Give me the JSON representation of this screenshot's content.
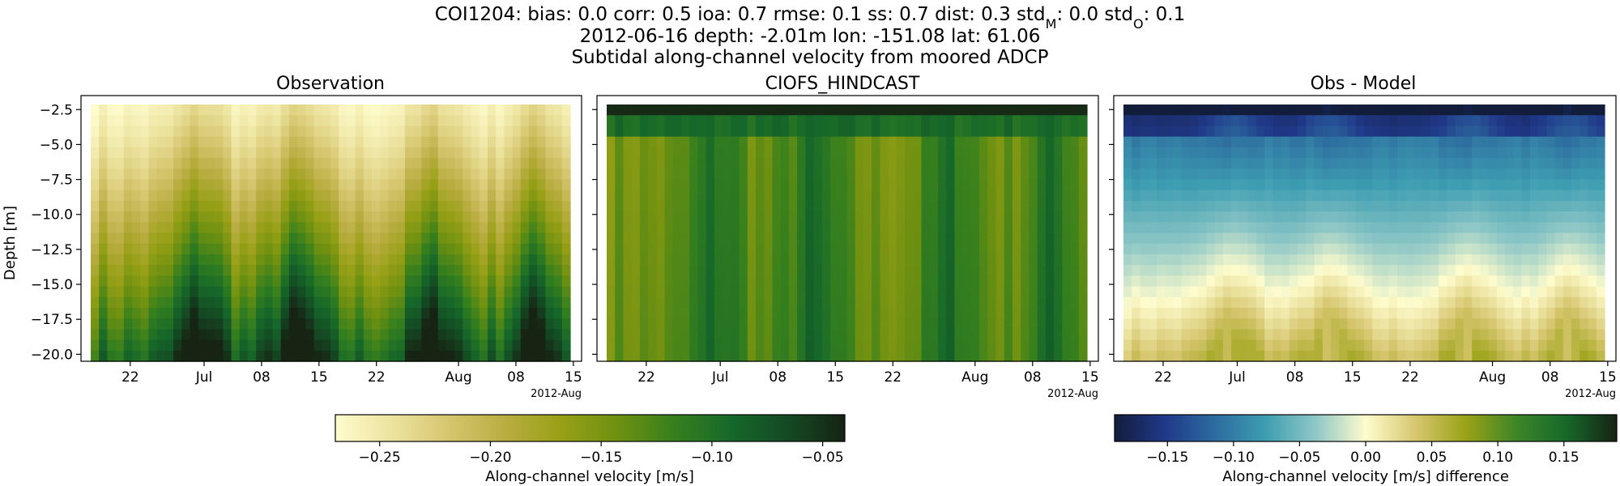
{
  "header": {
    "metrics": [
      {
        "label": "COI1204: bias:",
        "value": "0.0"
      },
      {
        "label": "corr:",
        "value": "0.5"
      },
      {
        "label": "ioa:",
        "value": "0.7"
      },
      {
        "label": "rmse:",
        "value": "0.1"
      },
      {
        "label": "ss:",
        "value": "0.7"
      },
      {
        "label": "dist:",
        "value": "0.3"
      },
      {
        "label": "std",
        "sub": "M",
        "value": "0.0"
      },
      {
        "label": "std",
        "sub": "O",
        "value": "0.1"
      }
    ],
    "line2": "2012-06-16 depth: -2.01m lon: -151.08 lat: 61.06",
    "line3": "Subtidal along-channel velocity from moored ADCP"
  },
  "chart_data": [
    {
      "type": "heatmap",
      "title": "Observation",
      "ylabel": "Depth [m]",
      "xlim": [
        "2012-06-16",
        "2012-08-16"
      ],
      "ylim": [
        -20.5,
        -1.5
      ],
      "x_ticks": [
        "22",
        "Jul",
        "08",
        "15",
        "22",
        "Aug",
        "08",
        "15"
      ],
      "x_tick_dates": [
        "2012-06-22",
        "2012-07-01",
        "2012-07-08",
        "2012-07-15",
        "2012-07-22",
        "2012-08-01",
        "2012-08-08",
        "2012-08-15"
      ],
      "x_offset_label": "2012-Aug",
      "y_ticks": [
        -2.5,
        -5.0,
        -7.5,
        -10.0,
        -12.5,
        -15.0,
        -17.5,
        -20.0
      ],
      "colormap": "speed",
      "clim": [
        -0.27,
        -0.04
      ],
      "colorbar_ticks": [
        -0.25,
        -0.2,
        -0.15,
        -0.1,
        -0.05
      ],
      "colorbar_label": "Along-channel velocity [m/s]"
    },
    {
      "type": "heatmap",
      "title": "CIOFS_HINDCAST",
      "xlim": [
        "2012-06-16",
        "2012-08-16"
      ],
      "ylim": [
        -20.5,
        -1.5
      ],
      "x_ticks": [
        "22",
        "Jul",
        "08",
        "15",
        "22",
        "Aug",
        "08",
        "15"
      ],
      "x_offset_label": "2012-Aug",
      "colormap": "speed",
      "clim": [
        -0.27,
        -0.04
      ]
    },
    {
      "type": "heatmap",
      "title": "Obs - Model",
      "xlim": [
        "2012-06-16",
        "2012-08-16"
      ],
      "ylim": [
        -20.5,
        -1.5
      ],
      "x_ticks": [
        "22",
        "Jul",
        "08",
        "15",
        "22",
        "Aug",
        "08",
        "15"
      ],
      "x_offset_label": "2012-Aug",
      "colormap": "delta",
      "clim": [
        -0.19,
        0.19
      ],
      "colorbar_ticks": [
        -0.15,
        -0.1,
        -0.05,
        0.0,
        0.05,
        0.1,
        0.15
      ],
      "colorbar_label": "Along-channel velocity [m/s] difference"
    }
  ],
  "colors": {
    "speed": [
      "#fefccd",
      "#ece39f",
      "#d6c66f",
      "#b9ad41",
      "#97a016",
      "#6e9011",
      "#357f1e",
      "#16682a",
      "#144923",
      "#172313"
    ],
    "delta": [
      "#121d3c",
      "#203889",
      "#2d6c9f",
      "#3d9db1",
      "#8ec7c6",
      "#fefccd",
      "#d6c66f",
      "#9aa216",
      "#3d8628",
      "#16682a",
      "#172313"
    ]
  }
}
